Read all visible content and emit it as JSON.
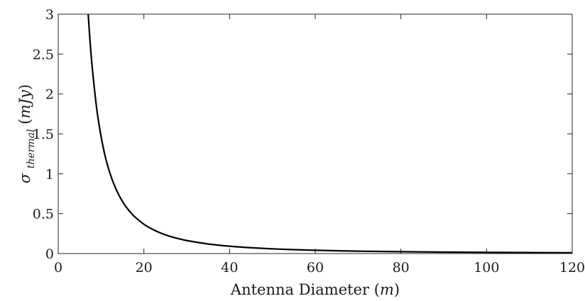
{
  "chart_data": {
    "type": "line",
    "title": "",
    "xlabel": {
      "text": "Antenna Diameter",
      "unit": "m"
    },
    "ylabel": {
      "symbol": "σ",
      "subscript": "thermal",
      "unit": "mJy"
    },
    "xlim": [
      0,
      120
    ],
    "ylim": [
      0,
      3
    ],
    "xticks": [
      "0",
      "20",
      "40",
      "60",
      "80",
      "100",
      "120"
    ],
    "yticks": [
      "0",
      "0.5",
      "1",
      "1.5",
      "2",
      "2.5",
      "3"
    ],
    "grid": false,
    "legend": "none",
    "series": [
      {
        "color": "#000000",
        "x": [
          7.0,
          7.5,
          8,
          9,
          10,
          11,
          12,
          13,
          14,
          15,
          16,
          17,
          18,
          20,
          22,
          24,
          26,
          28,
          30,
          35,
          40,
          45,
          50,
          55,
          60,
          70,
          80,
          90,
          100,
          110,
          120
        ],
        "y": [
          3.0,
          2.61,
          2.3,
          1.81,
          1.47,
          1.21,
          1.02,
          0.87,
          0.75,
          0.653,
          0.574,
          0.509,
          0.454,
          0.367,
          0.304,
          0.255,
          0.217,
          0.188,
          0.163,
          0.12,
          0.092,
          0.073,
          0.059,
          0.049,
          0.041,
          0.03,
          0.023,
          0.018,
          0.015,
          0.012,
          0.01
        ]
      }
    ]
  }
}
